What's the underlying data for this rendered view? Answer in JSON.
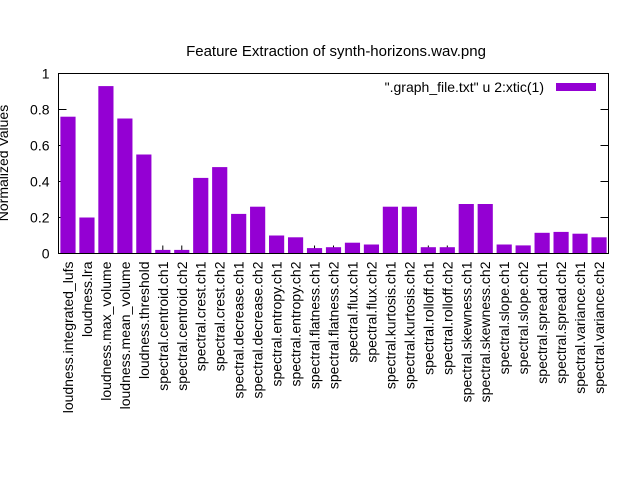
{
  "chart_data": {
    "type": "bar",
    "title": "Feature Extraction of synth-horizons.wav.png",
    "xlabel": "",
    "ylabel": "Normalized Values",
    "ylim": [
      0,
      1
    ],
    "yticks": [
      "0",
      "0.2",
      "0.4",
      "0.6",
      "0.8",
      "1"
    ],
    "ytick_values": [
      0,
      0.2,
      0.4,
      0.6,
      0.8,
      1
    ],
    "legend_position": "top-right",
    "series": [
      {
        "name": "\".graph_file.txt\" u 2:xtic(1)",
        "color": "#9400d3",
        "values": [
          0.76,
          0.2,
          0.93,
          0.75,
          0.55,
          0.02,
          0.02,
          0.42,
          0.48,
          0.22,
          0.26,
          0.1,
          0.09,
          0.03,
          0.035,
          0.06,
          0.05,
          0.26,
          0.26,
          0.035,
          0.035,
          0.275,
          0.275,
          0.05,
          0.045,
          0.115,
          0.12,
          0.11,
          0.09
        ]
      }
    ],
    "categories": [
      "loudness.integrated_lufs",
      "loudness.lra",
      "loudness.max_volume",
      "loudness.mean_volume",
      "loudness.threshold",
      "spectral.centroid.ch1",
      "spectral.centroid.ch2",
      "spectral.crest.ch1",
      "spectral.crest.ch2",
      "spectral.decrease.ch1",
      "spectral.decrease.ch2",
      "spectral.entropy.ch1",
      "spectral.entropy.ch2",
      "spectral.flatness.ch1",
      "spectral.flatness.ch2",
      "spectral.flux.ch1",
      "spectral.flux.ch2",
      "spectral.kurtosis.ch1",
      "spectral.kurtosis.ch2",
      "spectral.rolloff.ch1",
      "spectral.rolloff.ch2",
      "spectral.skewness.ch1",
      "spectral.skewness.ch2",
      "spectral.slope.ch1",
      "spectral.slope.ch2",
      "spectral.spread.ch1",
      "spectral.spread.ch2",
      "spectral.variance.ch1",
      "spectral.variance.ch2"
    ]
  }
}
